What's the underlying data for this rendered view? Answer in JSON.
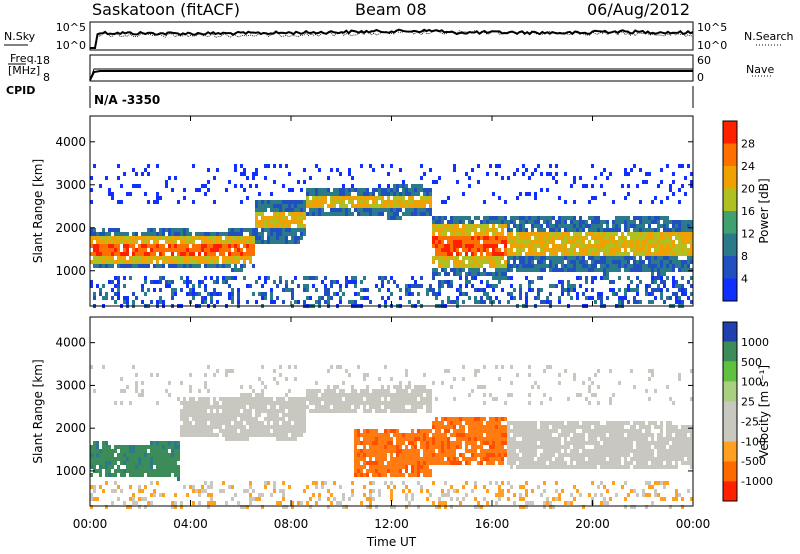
{
  "header": {
    "station": "Saskatoon (fitACF)",
    "beam": "Beam 08",
    "date": "06/Aug/2012"
  },
  "top_panels": {
    "nsky_label": "N.Sky",
    "nsearch_label": "N.Search",
    "freq_label_1": "Freq.",
    "freq_label_2": "[MHz]",
    "nave_label": "Nave",
    "cpid_label": "CPID",
    "cpid_value": "N/A -3350",
    "noise_ticks_left": [
      "10^5",
      "10^0"
    ],
    "noise_ticks_right": [
      "10^5",
      "10^0"
    ],
    "freq_ticks": [
      "18",
      "8"
    ],
    "nave_ticks": [
      "60",
      "0"
    ]
  },
  "chart_data": [
    {
      "type": "heatmap",
      "name": "power",
      "ylabel": "Slant Range [km]",
      "yticks": [
        "4000",
        "3000",
        "2000",
        "1000"
      ],
      "ylim": [
        180,
        4600
      ],
      "xlim": [
        "00:00",
        "24:00"
      ],
      "colorbar_label": "Power [dB]",
      "colorbar_ticks": [
        "28",
        "24",
        "20",
        "16",
        "12",
        "8",
        "4"
      ],
      "colorbar_colors": [
        "#1030ff",
        "#2050c0",
        "#2a7a8a",
        "#40a070",
        "#b0c020",
        "#f0a000",
        "#ff7000",
        "#ff2000"
      ],
      "echo_bands": [
        {
          "from_hour": 0.0,
          "to_hour": 6.5,
          "low_km": 1100,
          "high_km": 2000,
          "level": "high"
        },
        {
          "from_hour": 6.5,
          "to_hour": 8.5,
          "low_km": 1700,
          "high_km": 2700,
          "level": "medium"
        },
        {
          "from_hour": 8.5,
          "to_hour": 13.5,
          "low_km": 2300,
          "high_km": 3000,
          "level": "medium"
        },
        {
          "from_hour": 13.5,
          "to_hour": 16.5,
          "low_km": 900,
          "high_km": 2300,
          "level": "high"
        },
        {
          "from_hour": 16.5,
          "to_hour": 24.0,
          "low_km": 1000,
          "high_km": 2300,
          "level": "medium"
        }
      ]
    },
    {
      "type": "heatmap",
      "name": "velocity",
      "ylabel": "Slant Range [km]",
      "yticks": [
        "4000",
        "3000",
        "2000",
        "1000"
      ],
      "ylim": [
        180,
        4600
      ],
      "xlim": [
        "00:00",
        "24:00"
      ],
      "colorbar_label": "Velocity [m s⁻¹]",
      "colorbar_ticks": [
        "1000",
        "500",
        "100",
        "25",
        "-25",
        "-100",
        "-500",
        "-1000"
      ],
      "colorbar_colors": [
        "#2040b0",
        "#3c8c5a",
        "#60c040",
        "#a8d080",
        "#c8c8c0",
        "#c8c8c0",
        "#ffa020",
        "#ff6a00",
        "#ff2000"
      ],
      "echo_bands": [
        {
          "from_hour": 0.0,
          "to_hour": 3.5,
          "low_km": 900,
          "high_km": 1700,
          "color": "teal"
        },
        {
          "from_hour": 3.5,
          "to_hour": 8.5,
          "low_km": 1800,
          "high_km": 2800,
          "color": "grey"
        },
        {
          "from_hour": 8.5,
          "to_hour": 13.5,
          "low_km": 2400,
          "high_km": 3000,
          "color": "grey"
        },
        {
          "from_hour": 10.5,
          "to_hour": 13.5,
          "low_km": 900,
          "high_km": 2000,
          "color": "orange"
        },
        {
          "from_hour": 13.5,
          "to_hour": 16.5,
          "low_km": 1200,
          "high_km": 2300,
          "color": "orange"
        },
        {
          "from_hour": 16.5,
          "to_hour": 24.0,
          "low_km": 1100,
          "high_km": 2200,
          "color": "grey"
        }
      ]
    }
  ],
  "xaxis": {
    "ticks": [
      "00:00",
      "04:00",
      "08:00",
      "12:00",
      "16:00",
      "20:00",
      "00:00"
    ],
    "label": "Time UT"
  }
}
